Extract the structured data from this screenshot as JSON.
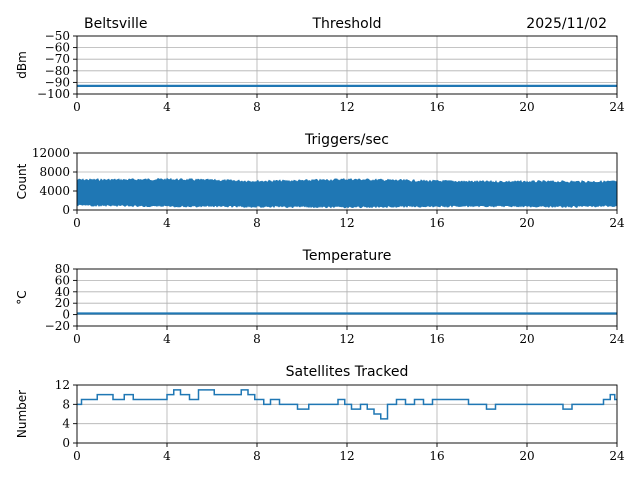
{
  "header": {
    "station": "Beltsville",
    "date": "2025/11/02"
  },
  "chart_data": [
    {
      "type": "line",
      "title": "Threshold",
      "xlabel": "",
      "ylabel": "dBm",
      "xlim": [
        0,
        24
      ],
      "ylim": [
        -100,
        -50
      ],
      "xticks": [
        0,
        4,
        8,
        12,
        16,
        20,
        24
      ],
      "yticks": [
        -100,
        -90,
        -80,
        -70,
        -60,
        -50
      ],
      "ytick_labels": [
        "−100",
        "−90",
        "−80",
        "−70",
        "−60",
        "−50"
      ],
      "grid": true,
      "series": [
        {
          "name": "Threshold",
          "x": [
            0,
            24
          ],
          "y": [
            -93,
            -93
          ]
        }
      ]
    },
    {
      "type": "area",
      "title": "Triggers/sec",
      "xlabel": "",
      "ylabel": "Count",
      "xlim": [
        0,
        24
      ],
      "ylim": [
        0,
        12000
      ],
      "xticks": [
        0,
        4,
        8,
        12,
        16,
        20,
        24
      ],
      "yticks": [
        0,
        4000,
        8000,
        12000
      ],
      "ytick_labels": [
        "0",
        "4000",
        "8000",
        "12000"
      ],
      "grid": true,
      "series": [
        {
          "name": "Triggers/sec",
          "x": [
            0,
            2,
            4,
            6,
            8,
            10,
            12,
            14,
            16,
            18,
            20,
            22,
            24
          ],
          "y_min": [
            800,
            700,
            600,
            600,
            500,
            500,
            400,
            500,
            600,
            600,
            600,
            500,
            700
          ],
          "y_max": [
            6600,
            6600,
            6700,
            6500,
            6300,
            6400,
            6700,
            6500,
            6300,
            6200,
            6200,
            6200,
            6200
          ]
        }
      ]
    },
    {
      "type": "line",
      "title": "Temperature",
      "xlabel": "",
      "ylabel": "°C",
      "xlim": [
        0,
        24
      ],
      "ylim": [
        -20,
        80
      ],
      "xticks": [
        0,
        4,
        8,
        12,
        16,
        20,
        24
      ],
      "yticks": [
        -20,
        0,
        20,
        40,
        60,
        80
      ],
      "ytick_labels": [
        "−20",
        "0",
        "20",
        "40",
        "60",
        "80"
      ],
      "grid": true,
      "series": [
        {
          "name": "Temperature",
          "x": [
            0,
            24
          ],
          "y": [
            2,
            2
          ]
        }
      ]
    },
    {
      "type": "line",
      "title": "Satellites Tracked",
      "xlabel": "",
      "ylabel": "Number",
      "xlim": [
        0,
        24
      ],
      "ylim": [
        0,
        12
      ],
      "xticks": [
        0,
        4,
        8,
        12,
        16,
        20,
        24
      ],
      "yticks": [
        0,
        4,
        8,
        12
      ],
      "ytick_labels": [
        "0",
        "4",
        "8",
        "12"
      ],
      "grid": true,
      "series": [
        {
          "name": "Satellites",
          "x": [
            0,
            0.2,
            0.5,
            0.9,
            1.3,
            1.6,
            2.1,
            2.5,
            3.0,
            3.5,
            4.0,
            4.3,
            4.6,
            5.0,
            5.4,
            5.8,
            6.1,
            6.5,
            7.0,
            7.3,
            7.6,
            7.9,
            8.3,
            8.6,
            9.0,
            9.4,
            9.8,
            10.3,
            10.8,
            11.3,
            11.6,
            11.9,
            12.2,
            12.6,
            12.9,
            13.2,
            13.5,
            13.8,
            14.2,
            14.6,
            15.0,
            15.4,
            15.8,
            16.2,
            16.6,
            17.0,
            17.4,
            17.8,
            18.2,
            18.6,
            19.0,
            19.5,
            20.0,
            20.5,
            21.0,
            21.3,
            21.6,
            22.0,
            22.5,
            23.0,
            23.4,
            23.7,
            23.9,
            24.0
          ],
          "y": [
            8,
            9,
            9,
            10,
            10,
            9,
            10,
            9,
            9,
            9,
            10,
            11,
            10,
            9,
            11,
            11,
            10,
            10,
            10,
            11,
            10,
            9,
            8,
            9,
            8,
            8,
            7,
            8,
            8,
            8,
            9,
            8,
            7,
            8,
            7,
            6,
            5,
            8,
            9,
            8,
            9,
            8,
            9,
            9,
            9,
            9,
            8,
            8,
            7,
            8,
            8,
            8,
            8,
            8,
            8,
            8,
            7,
            8,
            8,
            8,
            9,
            10,
            9,
            9
          ]
        }
      ]
    }
  ]
}
